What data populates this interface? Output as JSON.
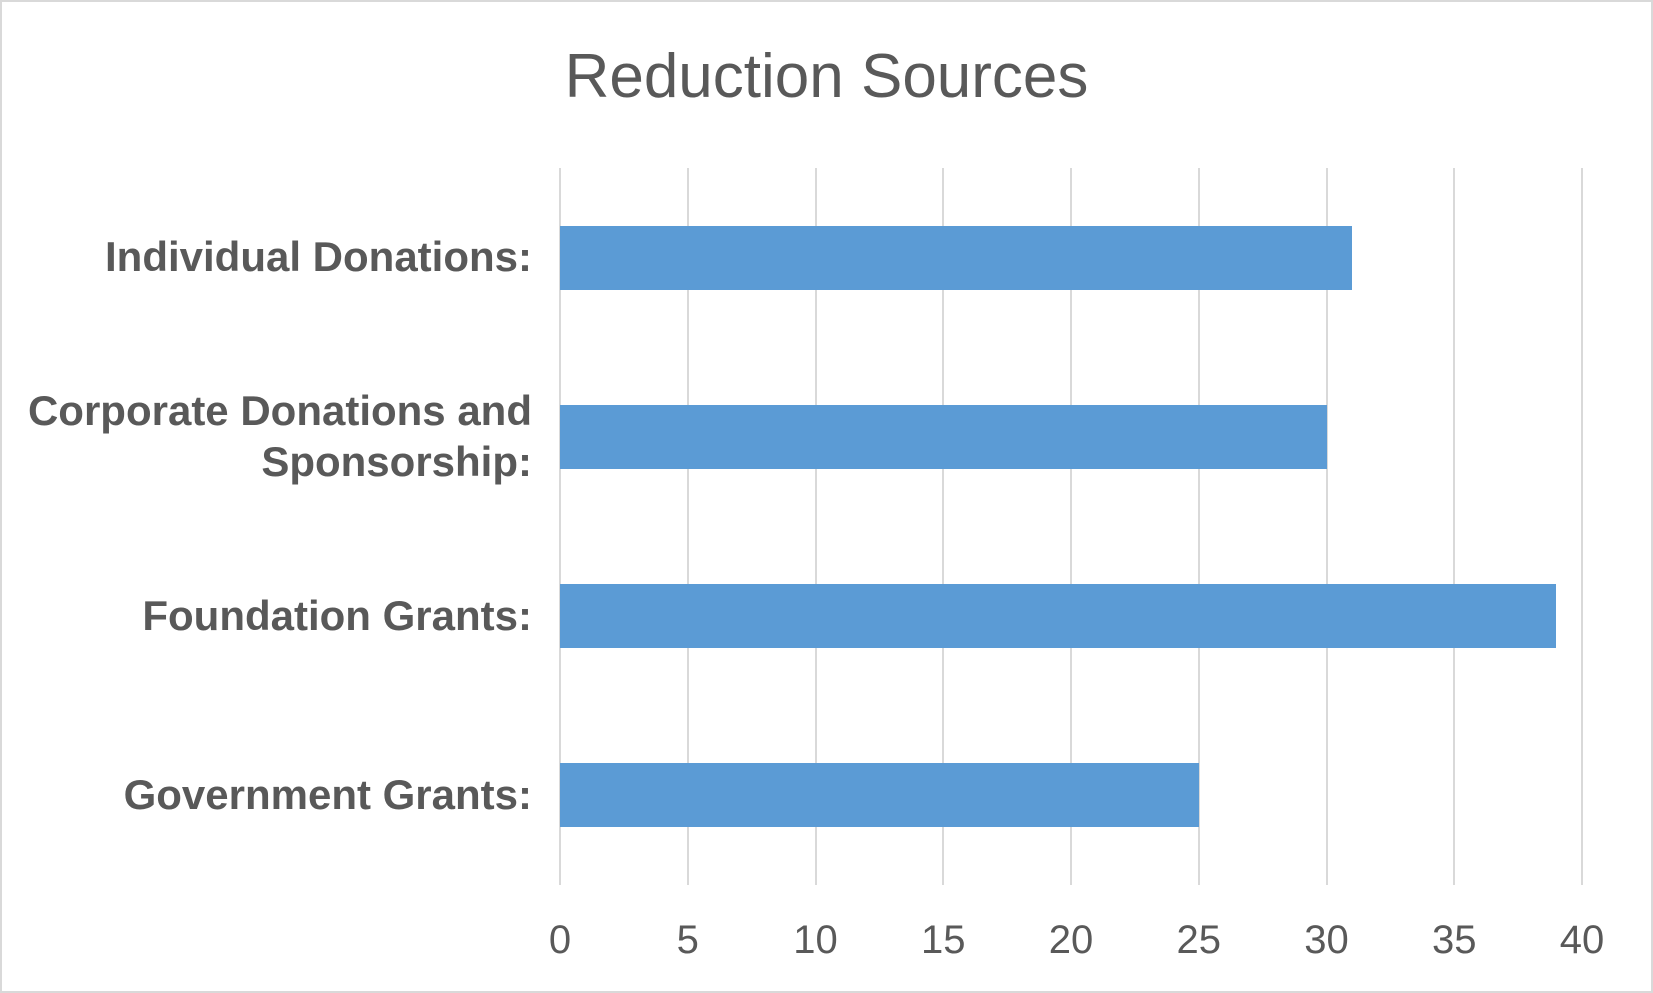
{
  "chart_data": {
    "type": "bar",
    "orientation": "horizontal",
    "title": "Reduction Sources",
    "categories": [
      "Individual Donations:",
      "Corporate Donations and Sponsorship:",
      "Foundation Grants:",
      "Government Grants:"
    ],
    "values": [
      31,
      30,
      39,
      25
    ],
    "xlabel": "",
    "ylabel": "",
    "xlim": [
      0,
      40
    ],
    "xticks": [
      0,
      5,
      10,
      15,
      20,
      25,
      30,
      35,
      40
    ],
    "grid": "vertical-only",
    "legend": false,
    "colors": {
      "bar": "#5b9bd5",
      "title_text": "#595959",
      "category_text": "#595959",
      "tick_text": "#595959",
      "gridline": "#d9d9d9",
      "background": "#ffffff",
      "frame_border": "#d9d9d9"
    }
  }
}
